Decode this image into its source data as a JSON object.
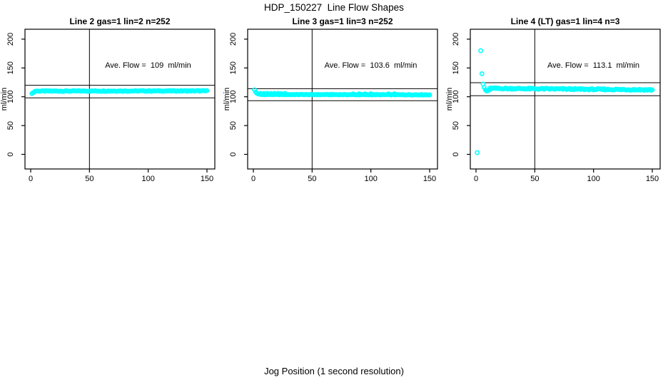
{
  "title": "HDP_150227  Line Flow Shapes",
  "xlabel": "Jog Position (1 second resolution)",
  "colors": {
    "point": "#00ffff",
    "axis": "#000000",
    "text": "#000000",
    "background": "#ffffff"
  },
  "marker": "open-circle",
  "chart_data": [
    {
      "type": "scatter",
      "title": "Line 2 gas=1 lin=2 n=252",
      "annotation": "Ave. Flow =  109  ml/min",
      "ave_flow": 109,
      "n": 252,
      "ylabel": "ml/min",
      "xlim": [
        -5,
        157
      ],
      "ylim": [
        -25,
        218
      ],
      "x_ticks": [
        0,
        50,
        100,
        150
      ],
      "y_ticks": [
        0,
        50,
        100,
        150,
        200
      ],
      "vline_x": 50,
      "ref_lines_y": [
        119.9,
        98.1
      ],
      "points": [
        [
          1,
          105.5
        ],
        [
          2,
          107
        ],
        [
          3,
          108.2
        ]
      ],
      "runs": [
        {
          "x_from": 4,
          "x_to": 150,
          "y_start": 109.8,
          "y_end": 110.2,
          "jitter": 0.7
        }
      ]
    },
    {
      "type": "scatter",
      "title": "Line 3 gas=1 lin=3 n=252",
      "annotation": "Ave. Flow =  103.6  ml/min",
      "ave_flow": 103.6,
      "n": 252,
      "ylabel": "ml/min",
      "xlim": [
        -5,
        157
      ],
      "ylim": [
        -25,
        218
      ],
      "x_ticks": [
        0,
        50,
        100,
        150
      ],
      "y_ticks": [
        0,
        50,
        100,
        150,
        200
      ],
      "vline_x": 50,
      "ref_lines_y": [
        114.0,
        93.2
      ],
      "points": [
        [
          1,
          112
        ],
        [
          2,
          108
        ],
        [
          3,
          106
        ],
        [
          4,
          105
        ],
        [
          5,
          104.5
        ],
        [
          6,
          106
        ],
        [
          9,
          105.8
        ],
        [
          12,
          106
        ],
        [
          15,
          105.6
        ],
        [
          18,
          105.8
        ],
        [
          21,
          106
        ],
        [
          24,
          105.5
        ],
        [
          27,
          105.8
        ],
        [
          85,
          105
        ],
        [
          90,
          105.2
        ],
        [
          95,
          105
        ],
        [
          100,
          105.3
        ],
        [
          115,
          105
        ],
        [
          120,
          105.2
        ]
      ],
      "runs": [
        {
          "x_from": 6,
          "x_to": 150,
          "y_start": 103.9,
          "y_end": 103.4,
          "jitter": 0.5
        }
      ]
    },
    {
      "type": "scatter",
      "title": "Line 4 (LT) gas=1 lin=4 n=3",
      "annotation": "Ave. Flow =  113.1  ml/min",
      "ave_flow": 113.1,
      "n": 3,
      "ylabel": "ml/min",
      "xlim": [
        -5,
        157
      ],
      "ylim": [
        -25,
        218
      ],
      "x_ticks": [
        0,
        50,
        100,
        150
      ],
      "y_ticks": [
        0,
        50,
        100,
        150,
        200
      ],
      "vline_x": 50,
      "ref_lines_y": [
        124.4,
        101.8
      ],
      "points": [
        [
          1,
          3
        ],
        [
          4,
          180
        ],
        [
          5,
          140
        ],
        [
          6,
          122
        ],
        [
          7,
          116
        ],
        [
          8,
          112
        ],
        [
          9,
          110
        ],
        [
          10,
          110.5
        ],
        [
          11,
          111.5
        ]
      ],
      "runs": [
        {
          "x_from": 12,
          "x_to": 150,
          "y_start": 114.5,
          "y_end": 112,
          "jitter": 1.1
        }
      ]
    }
  ]
}
